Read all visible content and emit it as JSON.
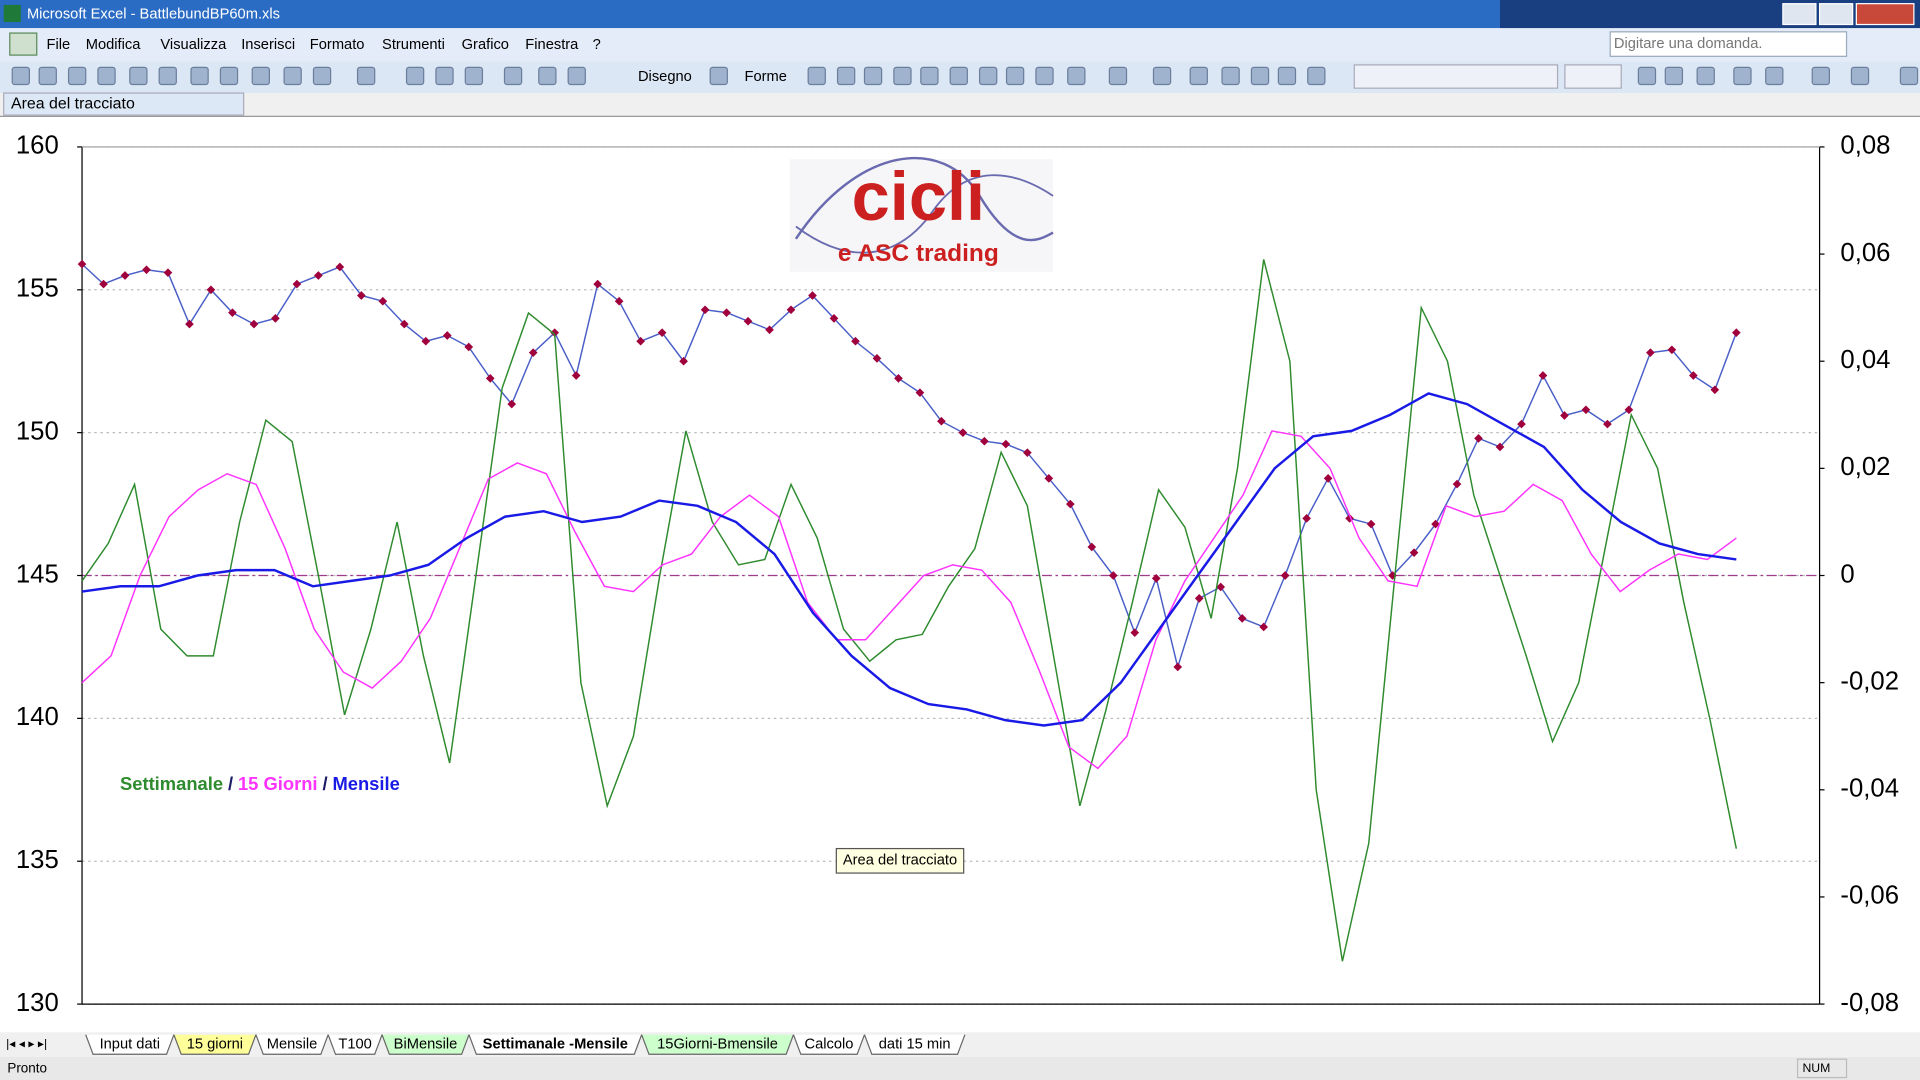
{
  "window": {
    "title": "Microsoft Excel - BattlebundBP60m.xls"
  },
  "menu": [
    "File",
    "Modifica",
    "Visualizza",
    "Inserisci",
    "Formato",
    "Strumenti",
    "Grafico",
    "Finestra",
    "?"
  ],
  "help_box": "Digitare una domanda.",
  "toolbar": {
    "draw": "Disegno",
    "shapes": "Forme"
  },
  "name_box": "Area del tracciato",
  "tooltip": "Area del tracciato",
  "logo": {
    "main": "cicli",
    "sub": "e ASC trading"
  },
  "sheet_tabs": [
    {
      "label": "Input dati",
      "color": "#ffffff"
    },
    {
      "label": "15 giorni",
      "color": "#ffff99"
    },
    {
      "label": "Mensile",
      "color": "#ffffff"
    },
    {
      "label": "T100",
      "color": "#ffffff"
    },
    {
      "label": "BiMensile",
      "color": "#ccffcc"
    },
    {
      "label": "Settimanale -Mensile",
      "color": "#ffffff"
    },
    {
      "label": "15Giorni-Bmensile",
      "color": "#ccffcc"
    },
    {
      "label": "Calcolo",
      "color": "#ffffff"
    },
    {
      "label": "dati 15 min",
      "color": "#ffffff"
    }
  ],
  "active_tab": 5,
  "status": {
    "left": "Pronto",
    "num": "NUM"
  },
  "chart_data": {
    "type": "line",
    "legend_separator": "/",
    "ylim": [
      130,
      160
    ],
    "yticks": [
      130,
      135,
      140,
      145,
      150,
      155,
      160
    ],
    "y2lim": [
      -0.08,
      0.08
    ],
    "y2ticks": [
      {
        "value": -0.08,
        "label": "-0,08"
      },
      {
        "value": -0.06,
        "label": "-0,06"
      },
      {
        "value": -0.04,
        "label": "-0,04"
      },
      {
        "value": -0.02,
        "label": "-0,02"
      },
      0,
      {
        "value": 0.02,
        "label": "0,02"
      },
      {
        "value": 0.04,
        "label": "0,04"
      },
      {
        "value": 0.06,
        "label": "0,06"
      },
      {
        "value": 0.08,
        "label": "0,08"
      }
    ],
    "grid": true,
    "series": [
      {
        "color": "#4a5fc8",
        "marker_color": "#a0003c",
        "axis": "y",
        "values": [
          155.9,
          155.2,
          155.5,
          155.7,
          155.6,
          153.8,
          155.0,
          154.2,
          153.8,
          154.0,
          155.2,
          155.5,
          155.8,
          154.8,
          154.6,
          153.8,
          153.2,
          153.4,
          153.0,
          151.9,
          151.0,
          152.8,
          153.5,
          152.0,
          155.2,
          154.6,
          153.2,
          153.5,
          152.5,
          154.3,
          154.2,
          153.9,
          153.6,
          154.3,
          154.8,
          154.0,
          153.2,
          152.6,
          151.9,
          151.4,
          150.4,
          150.0,
          149.7,
          149.6,
          149.3,
          148.4,
          147.5,
          146.0,
          145.0,
          143.0,
          144.9,
          141.8,
          144.2,
          144.6,
          143.5,
          143.2,
          145.0,
          147.0,
          148.4,
          147.0,
          146.8,
          145.0,
          145.8,
          146.8,
          148.2,
          149.8,
          149.5,
          150.3,
          152.0,
          150.6,
          150.8,
          150.3,
          150.8,
          152.8,
          152.9,
          152.0,
          151.5,
          153.5
        ]
      },
      {
        "name": "Settimanale",
        "color": "#2e8b2e",
        "axis": "y2",
        "values": [
          -0.001,
          0.006,
          0.017,
          -0.01,
          -0.015,
          -0.015,
          0.01,
          0.029,
          0.025,
          0.0,
          -0.026,
          -0.01,
          0.01,
          -0.015,
          -0.035,
          0.0,
          0.035,
          0.049,
          0.045,
          -0.02,
          -0.043,
          -0.03,
          0.0,
          0.027,
          0.01,
          0.002,
          0.003,
          0.017,
          0.007,
          -0.01,
          -0.016,
          -0.012,
          -0.011,
          -0.002,
          0.005,
          0.023,
          0.013,
          -0.015,
          -0.043,
          -0.025,
          -0.005,
          0.016,
          0.009,
          -0.008,
          0.02,
          0.059,
          0.04,
          -0.04,
          -0.072,
          -0.05,
          0.0,
          0.05,
          0.04,
          0.015,
          0.0,
          -0.015,
          -0.031,
          -0.02,
          0.005,
          0.03,
          0.02,
          -0.005,
          -0.027,
          -0.051
        ]
      },
      {
        "name": "15 Giorni",
        "color": "#ff33ff",
        "axis": "y2",
        "values": [
          -0.02,
          -0.015,
          0.0,
          0.011,
          0.016,
          0.019,
          0.017,
          0.005,
          -0.01,
          -0.018,
          -0.021,
          -0.016,
          -0.008,
          0.005,
          0.018,
          0.021,
          0.019,
          0.008,
          -0.002,
          -0.003,
          0.002,
          0.004,
          0.011,
          0.015,
          0.011,
          -0.005,
          -0.012,
          -0.012,
          -0.006,
          0.0,
          0.002,
          0.001,
          -0.005,
          -0.018,
          -0.032,
          -0.036,
          -0.03,
          -0.012,
          -0.001,
          0.007,
          0.015,
          0.027,
          0.026,
          0.02,
          0.007,
          -0.001,
          -0.002,
          0.013,
          0.011,
          0.012,
          0.017,
          0.014,
          0.004,
          -0.003,
          0.001,
          0.004,
          0.003,
          0.007
        ]
      },
      {
        "name": "Mensile",
        "color": "#1a1ae6",
        "axis": "y2",
        "values": [
          -0.003,
          -0.002,
          -0.002,
          0.0,
          0.001,
          0.001,
          -0.002,
          -0.001,
          0.0,
          0.002,
          0.007,
          0.011,
          0.012,
          0.01,
          0.011,
          0.014,
          0.013,
          0.01,
          0.004,
          -0.007,
          -0.015,
          -0.021,
          -0.024,
          -0.025,
          -0.027,
          -0.028,
          -0.027,
          -0.02,
          -0.01,
          0.0,
          0.01,
          0.02,
          0.026,
          0.027,
          0.03,
          0.034,
          0.032,
          0.028,
          0.024,
          0.016,
          0.01,
          0.006,
          0.004,
          0.003
        ]
      }
    ]
  }
}
